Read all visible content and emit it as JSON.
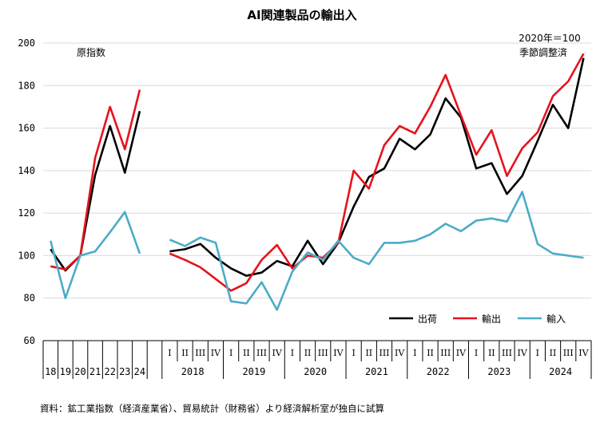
{
  "chart_data": {
    "type": "line",
    "title": "AI関連製品の輸出入",
    "index_note_left": "原指数",
    "base_note": "2020年＝100",
    "adjust_note": "季節調整済",
    "source": "資料：鉱工業指数（経済産業省）、貿易統計（財務省）より経済解析室が独自に試算",
    "ylim": [
      60,
      200
    ],
    "yticks": [
      60,
      80,
      100,
      120,
      140,
      160,
      180,
      200
    ],
    "annual_labels": [
      "18",
      "19",
      "20",
      "21",
      "22",
      "23",
      "24"
    ],
    "quarter_labels": [
      "I",
      "II",
      "III",
      "IV"
    ],
    "years": [
      "2018",
      "2019",
      "2020",
      "2021",
      "2022",
      "2023",
      "2024"
    ],
    "series": [
      {
        "name": "出荷",
        "color": "#000000",
        "annual": [
          103,
          93,
          100,
          138,
          161,
          139,
          168
        ],
        "quarterly": [
          102,
          103,
          105.5,
          99,
          94,
          90.5,
          92,
          97.5,
          95,
          107,
          96,
          106,
          123,
          137,
          141,
          155,
          150,
          157,
          174,
          165,
          141,
          143.5,
          129,
          137.5,
          154,
          171,
          160,
          193
        ]
      },
      {
        "name": "輸出",
        "color": "#e6131b",
        "annual": [
          95,
          93.5,
          100,
          146,
          170,
          150,
          178
        ],
        "quarterly": [
          101,
          98,
          94.5,
          89,
          83.5,
          87,
          98,
          105,
          94,
          100,
          99,
          106,
          140,
          131.5,
          152,
          161,
          157.5,
          170,
          185,
          166,
          147.5,
          159,
          137.5,
          150.5,
          158,
          175,
          182,
          195
        ]
      },
      {
        "name": "輸入",
        "color": "#4bacc6",
        "annual": [
          107,
          80,
          100,
          102,
          111,
          120.5,
          101
        ],
        "quarterly": [
          107.5,
          104.5,
          108.5,
          106,
          78.5,
          77.5,
          87.5,
          74.5,
          92.5,
          101.5,
          98,
          107,
          99,
          96,
          106,
          106,
          107,
          110,
          115,
          111.5,
          116.5,
          117.5,
          116,
          130,
          105.5,
          101,
          100,
          99
        ]
      }
    ]
  }
}
